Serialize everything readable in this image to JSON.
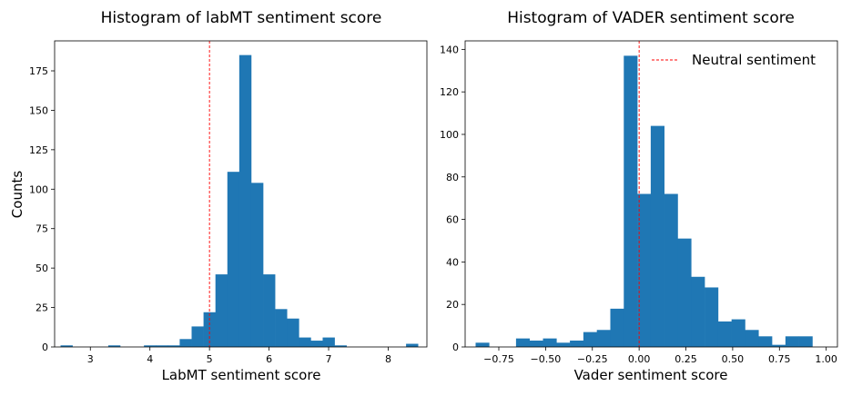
{
  "chart_data": [
    {
      "type": "bar",
      "title": "Histogram of labMT sentiment score",
      "xlabel": "LabMT sentiment score",
      "ylabel": "Counts",
      "xlim": [
        2.4,
        8.65
      ],
      "ylim": [
        0,
        194
      ],
      "bar_color": "#1f77b4",
      "bin_width": 0.2,
      "bins": [
        {
          "x": 2.5,
          "count": 1
        },
        {
          "x": 2.7,
          "count": 0
        },
        {
          "x": 2.9,
          "count": 0
        },
        {
          "x": 3.1,
          "count": 0
        },
        {
          "x": 3.3,
          "count": 1
        },
        {
          "x": 3.5,
          "count": 0
        },
        {
          "x": 3.7,
          "count": 0
        },
        {
          "x": 3.9,
          "count": 1
        },
        {
          "x": 4.1,
          "count": 1
        },
        {
          "x": 4.3,
          "count": 1
        },
        {
          "x": 4.5,
          "count": 5
        },
        {
          "x": 4.7,
          "count": 13
        },
        {
          "x": 4.9,
          "count": 22
        },
        {
          "x": 5.1,
          "count": 46
        },
        {
          "x": 5.3,
          "count": 111
        },
        {
          "x": 5.5,
          "count": 185
        },
        {
          "x": 5.7,
          "count": 104
        },
        {
          "x": 5.9,
          "count": 46
        },
        {
          "x": 6.1,
          "count": 24
        },
        {
          "x": 6.3,
          "count": 18
        },
        {
          "x": 6.5,
          "count": 6
        },
        {
          "x": 6.7,
          "count": 4
        },
        {
          "x": 6.9,
          "count": 6
        },
        {
          "x": 7.1,
          "count": 1
        },
        {
          "x": 7.3,
          "count": 0
        },
        {
          "x": 7.5,
          "count": 0
        },
        {
          "x": 7.7,
          "count": 0
        },
        {
          "x": 7.9,
          "count": 0
        },
        {
          "x": 8.1,
          "count": 0
        },
        {
          "x": 8.3,
          "count": 2
        }
      ],
      "xticks": [
        3,
        4,
        5,
        6,
        7,
        8
      ],
      "yticks": [
        0,
        25,
        50,
        75,
        100,
        125,
        150,
        175
      ],
      "vline": {
        "x": 5,
        "color": "#ff0000",
        "style": "dashed"
      },
      "grid": false
    },
    {
      "type": "bar",
      "title": "Histogram of VADER sentiment score",
      "xlabel": "Vader sentiment score",
      "ylabel": "",
      "xlim": [
        -0.93,
        1.06
      ],
      "ylim": [
        0,
        144
      ],
      "bar_color": "#1f77b4",
      "bin_width": 0.072,
      "bins": [
        {
          "x": -0.874,
          "count": 2
        },
        {
          "x": -0.802,
          "count": 0
        },
        {
          "x": -0.73,
          "count": 0
        },
        {
          "x": -0.658,
          "count": 4
        },
        {
          "x": -0.586,
          "count": 3
        },
        {
          "x": -0.514,
          "count": 4
        },
        {
          "x": -0.442,
          "count": 2
        },
        {
          "x": -0.37,
          "count": 3
        },
        {
          "x": -0.298,
          "count": 7
        },
        {
          "x": -0.226,
          "count": 8
        },
        {
          "x": -0.154,
          "count": 18
        },
        {
          "x": -0.082,
          "count": 137
        },
        {
          "x": -0.01,
          "count": 72
        },
        {
          "x": 0.062,
          "count": 104
        },
        {
          "x": 0.134,
          "count": 72
        },
        {
          "x": 0.206,
          "count": 51
        },
        {
          "x": 0.278,
          "count": 33
        },
        {
          "x": 0.35,
          "count": 28
        },
        {
          "x": 0.422,
          "count": 12
        },
        {
          "x": 0.494,
          "count": 13
        },
        {
          "x": 0.566,
          "count": 8
        },
        {
          "x": 0.638,
          "count": 5
        },
        {
          "x": 0.71,
          "count": 1
        },
        {
          "x": 0.782,
          "count": 5
        },
        {
          "x": 0.854,
          "count": 5
        }
      ],
      "xticks": [
        -0.75,
        -0.5,
        -0.25,
        0.0,
        0.25,
        0.5,
        0.75,
        1.0
      ],
      "xtick_labels": [
        "−0.75",
        "−0.50",
        "−0.25",
        "0.00",
        "0.25",
        "0.50",
        "0.75",
        "1.00"
      ],
      "yticks": [
        0,
        20,
        40,
        60,
        80,
        100,
        120,
        140
      ],
      "vline": {
        "x": 0,
        "color": "#ff0000",
        "style": "dashed"
      },
      "legend": {
        "label": "Neutral sentiment",
        "placement": "top-right"
      },
      "grid": false
    }
  ]
}
